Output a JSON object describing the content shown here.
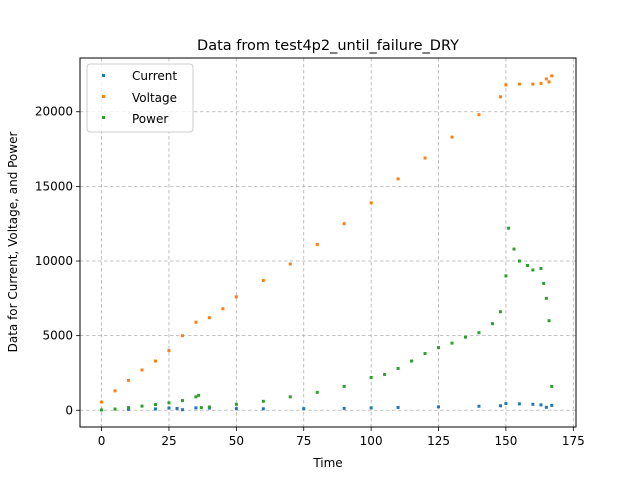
{
  "chart_data": {
    "type": "scatter",
    "title": "Data from test4p2_until_failure_DRY",
    "xlabel": "Time",
    "ylabel": "Data for Current, Voltage, and Power",
    "xlim": [
      -8,
      176
    ],
    "ylim": [
      -1120,
      23600
    ],
    "xticks": [
      0,
      25,
      50,
      75,
      100,
      125,
      150,
      175
    ],
    "yticks": [
      0,
      5000,
      10000,
      15000,
      20000
    ],
    "grid": true,
    "legend": "top-left",
    "series": [
      {
        "name": "Current",
        "color": "#1f77b4",
        "points": [
          [
            0,
            20
          ],
          [
            10,
            60
          ],
          [
            20,
            90
          ],
          [
            25,
            150
          ],
          [
            28,
            120
          ],
          [
            30,
            40
          ],
          [
            35,
            160
          ],
          [
            40,
            150
          ],
          [
            50,
            110
          ],
          [
            60,
            100
          ],
          [
            75,
            110
          ],
          [
            90,
            130
          ],
          [
            100,
            160
          ],
          [
            110,
            190
          ],
          [
            125,
            230
          ],
          [
            140,
            270
          ],
          [
            148,
            300
          ],
          [
            150,
            450
          ],
          [
            155,
            430
          ],
          [
            160,
            400
          ],
          [
            163,
            360
          ],
          [
            165,
            200
          ],
          [
            167,
            330
          ]
        ]
      },
      {
        "name": "Voltage",
        "color": "#ff7f0e",
        "points": [
          [
            0,
            550
          ],
          [
            5,
            1300
          ],
          [
            10,
            2000
          ],
          [
            15,
            2700
          ],
          [
            20,
            3300
          ],
          [
            25,
            4000
          ],
          [
            30,
            5000
          ],
          [
            35,
            5900
          ],
          [
            40,
            6200
          ],
          [
            45,
            6800
          ],
          [
            50,
            7600
          ],
          [
            60,
            8700
          ],
          [
            70,
            9800
          ],
          [
            80,
            11100
          ],
          [
            90,
            12500
          ],
          [
            100,
            13900
          ],
          [
            110,
            15500
          ],
          [
            120,
            16900
          ],
          [
            130,
            18300
          ],
          [
            140,
            19800
          ],
          [
            148,
            21000
          ],
          [
            150,
            21800
          ],
          [
            155,
            21850
          ],
          [
            160,
            21850
          ],
          [
            163,
            21900
          ],
          [
            165,
            22200
          ],
          [
            166,
            22000
          ],
          [
            167,
            22400
          ]
        ]
      },
      {
        "name": "Power",
        "color": "#2ca02c",
        "points": [
          [
            0,
            20
          ],
          [
            5,
            80
          ],
          [
            10,
            180
          ],
          [
            15,
            280
          ],
          [
            20,
            380
          ],
          [
            25,
            500
          ],
          [
            30,
            650
          ],
          [
            35,
            900
          ],
          [
            36,
            1000
          ],
          [
            37,
            180
          ],
          [
            40,
            220
          ],
          [
            50,
            400
          ],
          [
            60,
            600
          ],
          [
            70,
            900
          ],
          [
            80,
            1200
          ],
          [
            90,
            1600
          ],
          [
            100,
            2200
          ],
          [
            105,
            2400
          ],
          [
            110,
            2800
          ],
          [
            115,
            3300
          ],
          [
            120,
            3800
          ],
          [
            125,
            4200
          ],
          [
            130,
            4500
          ],
          [
            135,
            4900
          ],
          [
            140,
            5200
          ],
          [
            145,
            5800
          ],
          [
            148,
            6600
          ],
          [
            150,
            9000
          ],
          [
            151,
            12200
          ],
          [
            153,
            10800
          ],
          [
            155,
            10000
          ],
          [
            158,
            9700
          ],
          [
            160,
            9400
          ],
          [
            163,
            9500
          ],
          [
            164,
            8500
          ],
          [
            165,
            7500
          ],
          [
            166,
            6000
          ],
          [
            167,
            1600
          ]
        ]
      }
    ]
  }
}
